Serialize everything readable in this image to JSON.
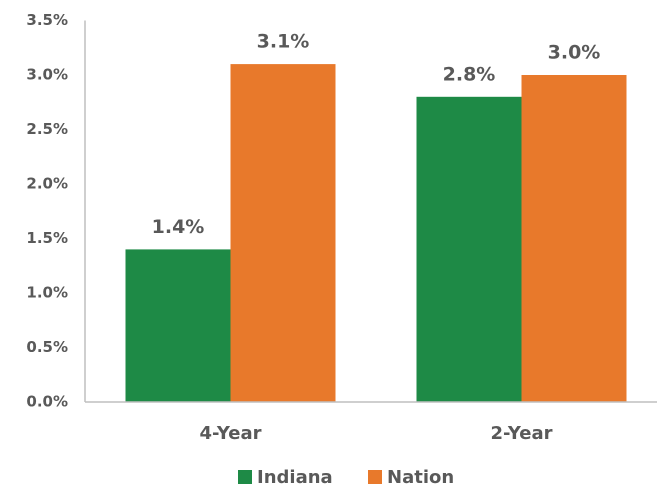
{
  "chart_data": {
    "type": "bar",
    "categories": [
      "4-Year",
      "2-Year"
    ],
    "series": [
      {
        "name": "Indiana",
        "color": "#1e8a46",
        "values": [
          1.4,
          2.8
        ],
        "value_labels": [
          "1.4%",
          "2.8%"
        ]
      },
      {
        "name": "Nation",
        "color": "#e8792b",
        "values": [
          3.1,
          3.0
        ],
        "value_labels": [
          "3.1%",
          "3.0%"
        ]
      }
    ],
    "ylim": [
      0,
      3.5
    ],
    "yticks": [
      {
        "value": 0,
        "label": "0.0%"
      },
      {
        "value": 0.5,
        "label": "0.5%"
      },
      {
        "value": 1,
        "label": "1.0%"
      },
      {
        "value": 1.5,
        "label": "1.5%"
      },
      {
        "value": 2,
        "label": "2.0%"
      },
      {
        "value": 2.5,
        "label": "2.5%"
      },
      {
        "value": 3,
        "label": "3.0%"
      },
      {
        "value": 3.5,
        "label": "3.5%"
      }
    ],
    "grid": false,
    "legend": "bottom"
  }
}
